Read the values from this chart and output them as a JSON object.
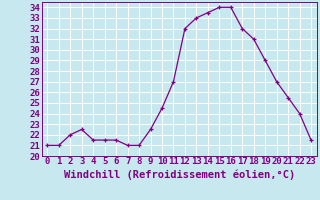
{
  "x": [
    0,
    1,
    2,
    3,
    4,
    5,
    6,
    7,
    8,
    9,
    10,
    11,
    12,
    13,
    14,
    15,
    16,
    17,
    18,
    19,
    20,
    21,
    22,
    23
  ],
  "y": [
    21,
    21,
    22,
    22.5,
    21.5,
    21.5,
    21.5,
    21,
    21,
    22.5,
    24.5,
    27,
    32,
    33,
    33.5,
    34,
    34,
    32,
    31,
    29,
    27,
    25.5,
    24,
    21.5
  ],
  "line_color": "#800080",
  "marker": "+",
  "marker_color": "#800080",
  "bg_color": "#c8e8f0",
  "grid_color": "#ffffff",
  "xlabel": "Windchill (Refroidissement éolien,°C)",
  "xlabel_color": "#800080",
  "tick_color": "#800080",
  "ylim": [
    20,
    34.5
  ],
  "xlim": [
    -0.5,
    23.5
  ],
  "yticks": [
    20,
    21,
    22,
    23,
    24,
    25,
    26,
    27,
    28,
    29,
    30,
    31,
    32,
    33,
    34
  ],
  "xticks": [
    0,
    1,
    2,
    3,
    4,
    5,
    6,
    7,
    8,
    9,
    10,
    11,
    12,
    13,
    14,
    15,
    16,
    17,
    18,
    19,
    20,
    21,
    22,
    23
  ],
  "tick_fontsize": 6.5,
  "xlabel_fontsize": 7.5
}
